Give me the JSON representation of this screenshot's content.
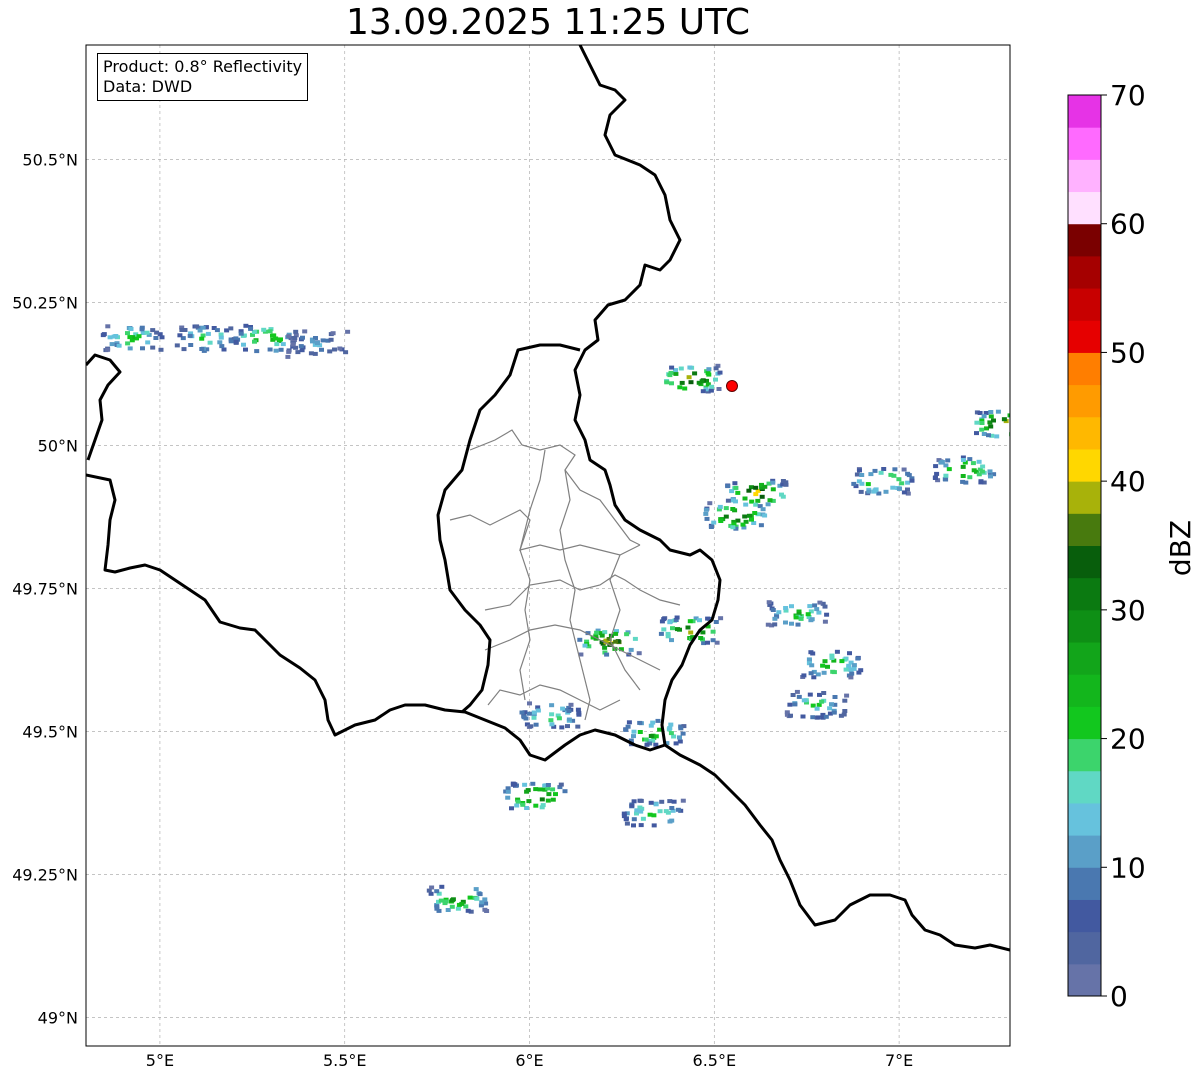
{
  "title": "13.09.2025 11:25 UTC",
  "info": {
    "product": "Product: 0.8° Reflectivity",
    "data": "Data: DWD"
  },
  "axes": {
    "lon_ticks": [
      "5°E",
      "5.5°E",
      "6°E",
      "6.5°E",
      "7°E"
    ],
    "lat_ticks": [
      "50.5°N",
      "50.25°N",
      "50°N",
      "49.75°N",
      "49.5°N",
      "49.25°N",
      "49°N"
    ]
  },
  "colorbar": {
    "unit": "dBZ",
    "tick_labels": [
      "0",
      "10",
      "20",
      "30",
      "40",
      "50",
      "60",
      "70"
    ],
    "colors": [
      "#6673a8",
      "#5066a0",
      "#4259a0",
      "#4a78b0",
      "#5a9fc8",
      "#66c2dd",
      "#60d8c4",
      "#3cd46c",
      "#12c71e",
      "#13b61c",
      "#12a51a",
      "#0e8f15",
      "#0b7a11",
      "#085e0c",
      "#487a0e",
      "#a8b20a",
      "#ffd700",
      "#ffb800",
      "#ff9b00",
      "#ff7e00",
      "#e60000",
      "#c80000",
      "#a50000",
      "#7a0000",
      "#ffe0ff",
      "#ffb2ff",
      "#ff6aff",
      "#e633e6"
    ]
  },
  "marker_color": "#ff0000",
  "chart_data": {
    "type": "map",
    "title": "13.09.2025 11:25 UTC",
    "xlabel": "",
    "ylabel": "",
    "lon_range": [
      4.8,
      7.3
    ],
    "lat_range": [
      48.95,
      50.7
    ],
    "grid": true,
    "colorbar": {
      "label": "dBZ",
      "range": [
        0,
        70
      ],
      "step": 2.5
    },
    "radar_site": {
      "lon": 6.55,
      "lat": 50.11
    },
    "echoes": [
      {
        "lon": 4.92,
        "lat": 50.19,
        "dbz": 25
      },
      {
        "lon": 5.12,
        "lat": 50.19,
        "dbz": 22
      },
      {
        "lon": 5.28,
        "lat": 50.19,
        "dbz": 32
      },
      {
        "lon": 5.42,
        "lat": 50.18,
        "dbz": 12
      },
      {
        "lon": 6.43,
        "lat": 50.12,
        "dbz": 45
      },
      {
        "lon": 6.61,
        "lat": 49.92,
        "dbz": 44
      },
      {
        "lon": 6.55,
        "lat": 49.88,
        "dbz": 42
      },
      {
        "lon": 6.95,
        "lat": 49.94,
        "dbz": 30
      },
      {
        "lon": 7.17,
        "lat": 49.96,
        "dbz": 32
      },
      {
        "lon": 7.28,
        "lat": 50.04,
        "dbz": 50
      },
      {
        "lon": 6.21,
        "lat": 49.66,
        "dbz": 44
      },
      {
        "lon": 6.43,
        "lat": 49.68,
        "dbz": 42
      },
      {
        "lon": 6.33,
        "lat": 49.5,
        "dbz": 30
      },
      {
        "lon": 6.01,
        "lat": 49.39,
        "dbz": 42
      },
      {
        "lon": 6.33,
        "lat": 49.36,
        "dbz": 25
      },
      {
        "lon": 6.81,
        "lat": 49.62,
        "dbz": 30
      },
      {
        "lon": 6.77,
        "lat": 49.55,
        "dbz": 22
      },
      {
        "lon": 6.72,
        "lat": 49.71,
        "dbz": 25
      },
      {
        "lon": 5.8,
        "lat": 49.21,
        "dbz": 32
      },
      {
        "lon": 6.05,
        "lat": 49.53,
        "dbz": 22
      }
    ]
  }
}
